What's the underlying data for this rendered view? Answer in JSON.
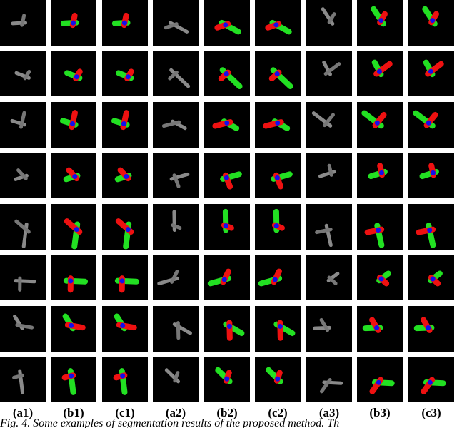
{
  "columns": [
    "(a1)",
    "(b1)",
    "(c1)",
    "(a2)",
    "(b2)",
    "(c2)",
    "(a3)",
    "(b3)",
    "(c3)"
  ],
  "caption": "Fig. 4. Some examples of segmentation results of the proposed method. Th"
}
